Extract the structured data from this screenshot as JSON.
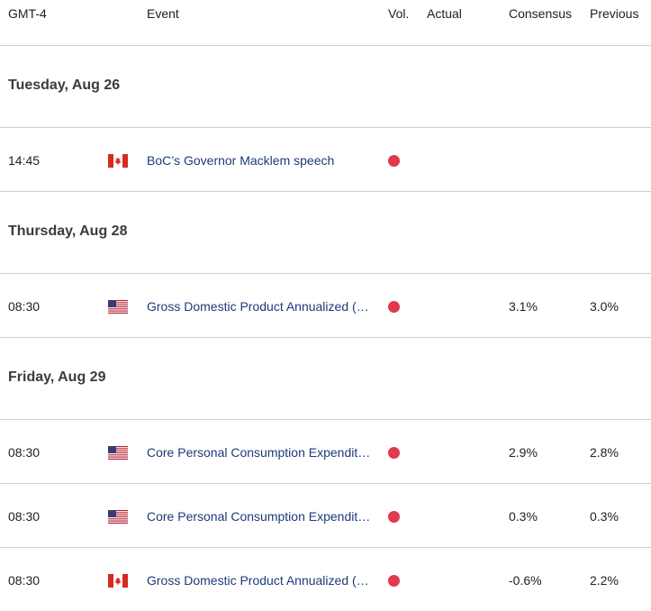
{
  "header": {
    "timezone": "GMT-4",
    "event": "Event",
    "vol": "Vol.",
    "actual": "Actual",
    "consensus": "Consensus",
    "previous": "Previous"
  },
  "colors": {
    "volatility_dot": "#e0384f",
    "event_text": "#1e3a78",
    "divider": "#cfcfcf"
  },
  "days": [
    {
      "date": "Tuesday, Aug 26",
      "events": [
        {
          "time": "14:45",
          "flag": "canada-flag-icon",
          "event": "BoC’s Governor Macklem speech",
          "actual": "",
          "consensus": "",
          "previous": ""
        }
      ]
    },
    {
      "date": "Thursday, Aug 28",
      "events": [
        {
          "time": "08:30",
          "flag": "usa-flag-icon",
          "event": "Gross Domestic Product Annualized (…",
          "actual": "",
          "consensus": "3.1%",
          "previous": "3.0%"
        }
      ]
    },
    {
      "date": "Friday, Aug 29",
      "events": [
        {
          "time": "08:30",
          "flag": "usa-flag-icon",
          "event": "Core Personal Consumption Expendit…",
          "actual": "",
          "consensus": "2.9%",
          "previous": "2.8%"
        },
        {
          "time": "08:30",
          "flag": "usa-flag-icon",
          "event": "Core Personal Consumption Expendit…",
          "actual": "",
          "consensus": "0.3%",
          "previous": "0.3%"
        },
        {
          "time": "08:30",
          "flag": "canada-flag-icon",
          "event": "Gross Domestic Product Annualized (…",
          "actual": "",
          "consensus": "-0.6%",
          "previous": "2.2%"
        }
      ]
    }
  ]
}
